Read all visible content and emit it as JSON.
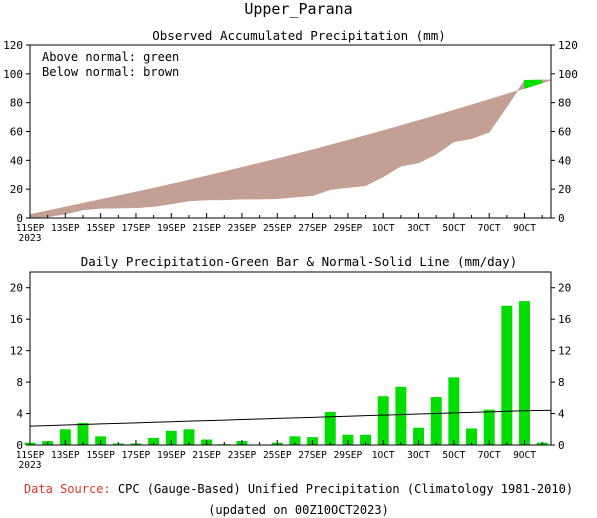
{
  "title": "Upper_Parana",
  "footer": {
    "source_label": "Data Source:",
    "source_text": "CPC (Gauge-Based) Unified Precipitation (Climatology 1981-2010)",
    "updated": "(updated on 00Z10OCT2023)"
  },
  "chart_data": [
    {
      "type": "area",
      "title": "Observed Accumulated Precipitation (mm)",
      "legend": [
        "Above normal: green",
        "Below normal: brown"
      ],
      "legend_placement": "top-left",
      "colors": {
        "below_normal": "#c4a094",
        "above_normal": "#00dd00"
      },
      "ylim": [
        0,
        120
      ],
      "yticks": [
        0,
        20,
        40,
        60,
        80,
        100,
        120
      ],
      "x": [
        "11SEP",
        "12SEP",
        "13SEP",
        "14SEP",
        "15SEP",
        "16SEP",
        "17SEP",
        "18SEP",
        "19SEP",
        "20SEP",
        "21SEP",
        "22SEP",
        "23SEP",
        "24SEP",
        "25SEP",
        "26SEP",
        "27SEP",
        "28SEP",
        "29SEP",
        "30SEP",
        "1OCT",
        "2OCT",
        "3OCT",
        "4OCT",
        "5OCT",
        "6OCT",
        "7OCT",
        "8OCT",
        "9OCT",
        "10OCT"
      ],
      "xtick_labels": [
        "11SEP\n2023",
        "13SEP",
        "15SEP",
        "17SEP",
        "19SEP",
        "21SEP",
        "23SEP",
        "25SEP",
        "27SEP",
        "29SEP",
        "1OCT",
        "3OCT",
        "5OCT",
        "7OCT",
        "9OCT"
      ],
      "series": [
        {
          "role": "observed",
          "values": [
            0.3,
            0.8,
            2.8,
            5.6,
            6.7,
            6.9,
            7.1,
            8.0,
            9.8,
            11.8,
            12.5,
            12.6,
            13.1,
            13.1,
            13.4,
            14.5,
            15.5,
            19.7,
            21.1,
            22.4,
            28.6,
            36.0,
            38.2,
            44.3,
            52.9,
            55.0,
            59.5,
            77.2,
            95.5,
            95.8
          ]
        },
        {
          "role": "normal",
          "values": [
            2.5,
            5.0,
            7.6,
            10.2,
            12.8,
            15.4,
            18.0,
            20.7,
            23.5,
            26.3,
            29.2,
            32.1,
            35.1,
            38.1,
            41.1,
            44.2,
            47.3,
            50.6,
            53.9,
            57.2,
            60.6,
            64.1,
            67.6,
            71.2,
            74.8,
            78.5,
            82.2,
            86.0,
            89.8,
            93.7
          ]
        }
      ]
    },
    {
      "type": "bar",
      "title": "Daily Precipitation-Green Bar & Normal-Solid Line (mm/day)",
      "colors": {
        "bar": "#00dd00",
        "line": "#000000"
      },
      "ylim": [
        0,
        22
      ],
      "yticks": [
        0,
        4,
        8,
        12,
        16,
        20
      ],
      "x": [
        "11SEP",
        "12SEP",
        "13SEP",
        "14SEP",
        "15SEP",
        "16SEP",
        "17SEP",
        "18SEP",
        "19SEP",
        "20SEP",
        "21SEP",
        "22SEP",
        "23SEP",
        "24SEP",
        "25SEP",
        "26SEP",
        "27SEP",
        "28SEP",
        "29SEP",
        "30SEP",
        "1OCT",
        "2OCT",
        "3OCT",
        "4OCT",
        "5OCT",
        "6OCT",
        "7OCT",
        "8OCT",
        "9OCT",
        "10OCT"
      ],
      "xtick_labels": [
        "11SEP\n2023",
        "13SEP",
        "15SEP",
        "17SEP",
        "19SEP",
        "21SEP",
        "23SEP",
        "25SEP",
        "27SEP",
        "29SEP",
        "1OCT",
        "3OCT",
        "5OCT",
        "7OCT",
        "9OCT"
      ],
      "series": [
        {
          "role": "daily",
          "values": [
            0.3,
            0.5,
            2.0,
            2.8,
            1.1,
            0.2,
            0.2,
            0.9,
            1.8,
            2.0,
            0.7,
            0.1,
            0.5,
            0.0,
            0.3,
            1.1,
            1.0,
            4.2,
            1.3,
            1.3,
            6.2,
            7.4,
            2.2,
            6.1,
            8.6,
            2.1,
            4.5,
            17.7,
            18.3,
            0.3
          ]
        },
        {
          "role": "normal",
          "values": [
            2.4,
            2.47,
            2.54,
            2.61,
            2.68,
            2.75,
            2.82,
            2.89,
            2.96,
            3.03,
            3.1,
            3.17,
            3.24,
            3.31,
            3.38,
            3.45,
            3.52,
            3.59,
            3.66,
            3.73,
            3.8,
            3.87,
            3.94,
            4.01,
            4.08,
            4.15,
            4.22,
            4.29,
            4.36,
            4.4
          ]
        }
      ]
    }
  ]
}
